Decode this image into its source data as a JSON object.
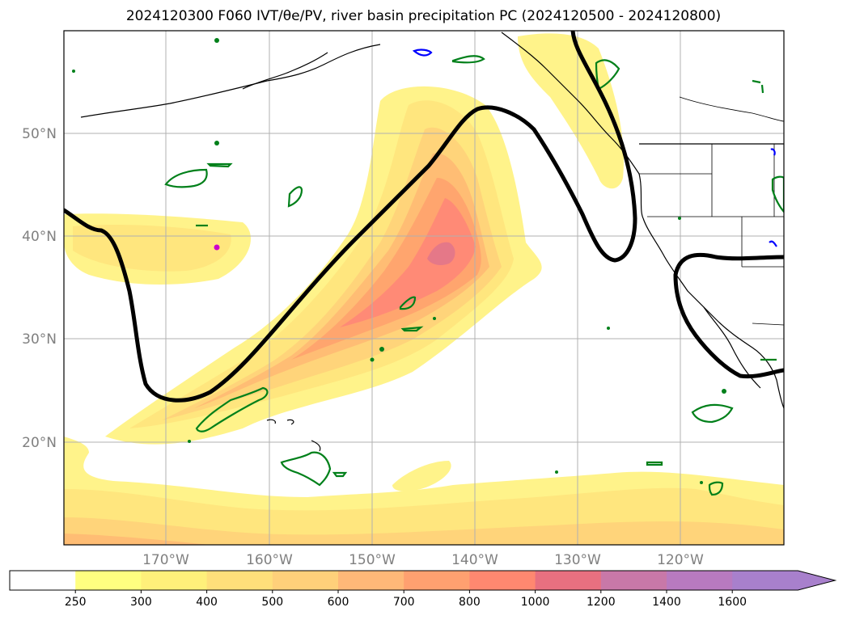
{
  "title": "2024120300 F060 IVT/θe/PV, river basin precipitation PC (2024120500 - 2024120800)",
  "lat_labels": [
    "50°N",
    "40°N",
    "30°N",
    "20°N"
  ],
  "lon_labels": [
    "170°W",
    "160°W",
    "150°W",
    "140°W",
    "130°W",
    "120°W"
  ],
  "colorbar": {
    "labels": [
      "250",
      "300",
      "400",
      "500",
      "600",
      "700",
      "800",
      "1000",
      "1200",
      "1400",
      "1600"
    ],
    "colors": [
      "#ffffff",
      "#ffff80",
      "#fff07a",
      "#ffdf7a",
      "#ffd07a",
      "#ffb878",
      "#ffa070",
      "#ff8870",
      "#e87080",
      "#c878a8",
      "#b87ac0",
      "#a880cc"
    ]
  },
  "colors": {
    "ivt_low": "#fff38a",
    "ivt_mid": "#ffdc7a",
    "ivt_high": "#ffb070",
    "ivt_core": "#ff8878",
    "ivt_peak": "#e07898",
    "pv_contour": "#000000",
    "green_contour": "#00801a",
    "blue_contour": "#0000ff",
    "magenta": "#cc00cc",
    "coast": "#000000",
    "grid": "#b0b0b0"
  }
}
